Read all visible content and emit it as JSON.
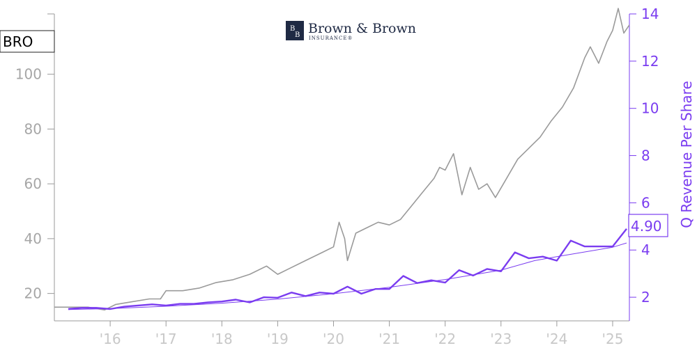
{
  "ticker": "BRO",
  "logo": {
    "name": "Brown & Brown",
    "sub": "INSURANCE®",
    "monogram_a": "B",
    "monogram_b": "B"
  },
  "colors": {
    "price": "#9a9a9a",
    "revenue": "#7a3cf0",
    "trend": "#7a3cf0",
    "axis_left": "#a6a6a6",
    "axis_right": "#7a3cf0",
    "logo": "#1f2a44"
  },
  "chart_data": {
    "type": "line",
    "title": "",
    "xlabel": "",
    "ylabel_left": "",
    "ylabel_right": "Q Revenue Per Share",
    "x_tick_labels": [
      "'16",
      "'17",
      "'18",
      "'19",
      "'20",
      "'21",
      "'22",
      "'23",
      "'24",
      "'25"
    ],
    "x_tick_years": [
      2016,
      2017,
      2018,
      2019,
      2020,
      2021,
      2022,
      2023,
      2024,
      2025
    ],
    "xlim": [
      2015.0,
      2025.3
    ],
    "left_axis": {
      "ylim": [
        10,
        122
      ],
      "ticks": [
        20,
        40,
        60,
        80,
        100
      ],
      "tick_labels": [
        "20",
        "40",
        "60",
        "80",
        "100"
      ]
    },
    "right_axis": {
      "ylim": [
        1.0,
        14.0
      ],
      "ticks": [
        2,
        4,
        6,
        8,
        10,
        12,
        14
      ],
      "tick_labels": [
        "2",
        "4",
        "6",
        "8",
        "10",
        "12",
        "14"
      ]
    },
    "last_value_label": "4.90",
    "grid": false,
    "series": [
      {
        "axis": "left",
        "x": [
          2015.0,
          2015.3,
          2015.6,
          2015.9,
          2016.1,
          2016.4,
          2016.7,
          2016.9,
          2017.0,
          2017.3,
          2017.6,
          2017.9,
          2018.2,
          2018.5,
          2018.8,
          2019.0,
          2019.2,
          2019.5,
          2019.8,
          2020.0,
          2020.1,
          2020.2,
          2020.25,
          2020.4,
          2020.6,
          2020.8,
          2021.0,
          2021.2,
          2021.4,
          2021.6,
          2021.8,
          2021.9,
          2022.0,
          2022.15,
          2022.3,
          2022.45,
          2022.6,
          2022.75,
          2022.9,
          2023.1,
          2023.3,
          2023.5,
          2023.7,
          2023.9,
          2024.1,
          2024.3,
          2024.5,
          2024.6,
          2024.75,
          2024.9,
          2025.0,
          2025.1,
          2025.2,
          2025.3
        ],
        "y": [
          15,
          15,
          15,
          14,
          16,
          17,
          18,
          18,
          21,
          21,
          22,
          24,
          25,
          27,
          30,
          27,
          29,
          32,
          35,
          37,
          46,
          40,
          32,
          42,
          44,
          46,
          45,
          47,
          52,
          57,
          62,
          66,
          65,
          71,
          56,
          66,
          58,
          60,
          55,
          62,
          69,
          73,
          77,
          83,
          88,
          95,
          106,
          110,
          104,
          112,
          116,
          124,
          115,
          118
        ]
      },
      {
        "axis": "right",
        "x": [
          2015.25,
          2015.5,
          2015.75,
          2016.0,
          2016.25,
          2016.5,
          2016.75,
          2017.0,
          2017.25,
          2017.5,
          2017.75,
          2018.0,
          2018.25,
          2018.5,
          2018.75,
          2019.0,
          2019.25,
          2019.5,
          2019.75,
          2020.0,
          2020.25,
          2020.5,
          2020.75,
          2021.0,
          2021.25,
          2021.5,
          2021.75,
          2022.0,
          2022.25,
          2022.5,
          2022.75,
          2023.0,
          2023.25,
          2023.5,
          2023.75,
          2024.0,
          2024.25,
          2024.5,
          2024.75,
          2025.0,
          2025.25
        ],
        "y": [
          1.5,
          1.55,
          1.55,
          1.5,
          1.6,
          1.65,
          1.7,
          1.65,
          1.72,
          1.72,
          1.78,
          1.82,
          1.9,
          1.78,
          2.0,
          1.98,
          2.2,
          2.05,
          2.2,
          2.15,
          2.45,
          2.15,
          2.35,
          2.35,
          2.9,
          2.6,
          2.72,
          2.62,
          3.15,
          2.92,
          3.2,
          3.1,
          3.9,
          3.65,
          3.72,
          3.55,
          4.4,
          4.15,
          4.15,
          4.15,
          4.9
        ]
      },
      {
        "axis": "right",
        "x": [
          2015.25,
          2016.0,
          2017.0,
          2018.0,
          2019.0,
          2020.0,
          2021.0,
          2022.0,
          2023.0,
          2023.6,
          2024.0,
          2025.0,
          2025.25
        ],
        "y": [
          1.48,
          1.52,
          1.62,
          1.75,
          1.92,
          2.15,
          2.42,
          2.75,
          3.15,
          3.55,
          3.72,
          4.12,
          4.3
        ]
      }
    ]
  }
}
